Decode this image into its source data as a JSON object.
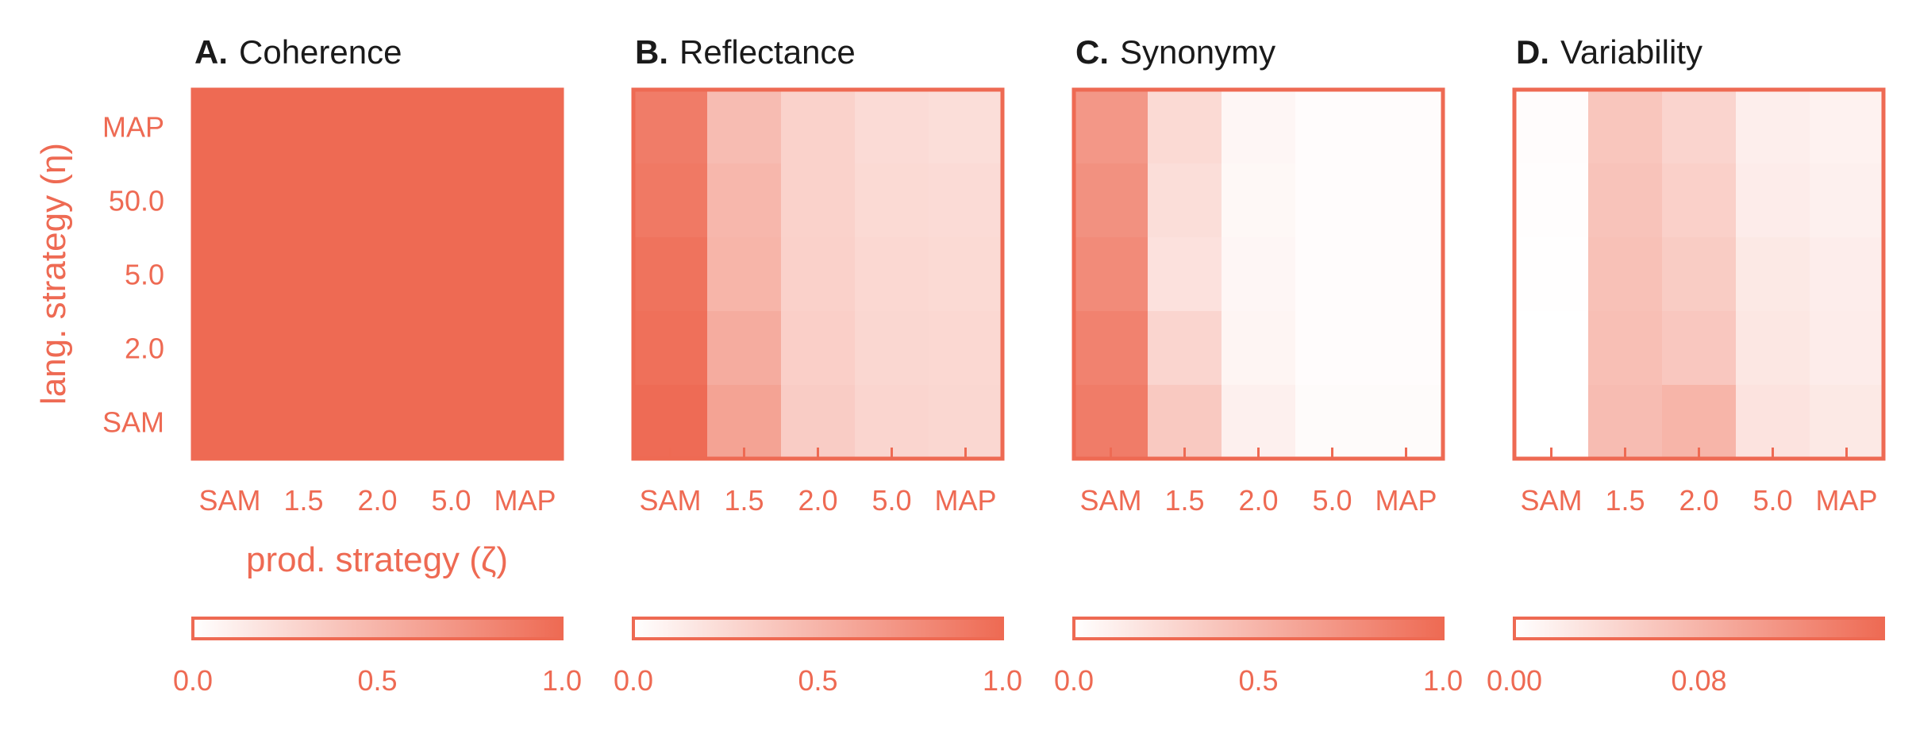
{
  "accent_color": "#EE6A53",
  "text_color": "#1a1a1a",
  "axes": {
    "ylabel": "lang. strategy (η)",
    "xlabel": "prod. strategy (ζ)",
    "row_labels_top_to_bottom": [
      "MAP",
      "50.0",
      "5.0",
      "2.0",
      "SAM"
    ],
    "col_labels": [
      "SAM",
      "1.5",
      "2.0",
      "5.0",
      "MAP"
    ]
  },
  "chart_data": [
    {
      "type": "heatmap",
      "letter": "A.",
      "title": "Coherence",
      "rows": [
        "MAP",
        "50.0",
        "5.0",
        "2.0",
        "SAM"
      ],
      "cols": [
        "SAM",
        "1.5",
        "2.0",
        "5.0",
        "MAP"
      ],
      "values": [
        [
          1.0,
          1.0,
          1.0,
          1.0,
          1.0
        ],
        [
          1.0,
          1.0,
          1.0,
          1.0,
          1.0
        ],
        [
          1.0,
          1.0,
          1.0,
          1.0,
          1.0
        ],
        [
          1.0,
          1.0,
          1.0,
          1.0,
          1.0
        ],
        [
          1.0,
          1.0,
          1.0,
          1.0,
          1.0
        ]
      ],
      "vmin": 0.0,
      "vmax": 1.0,
      "colorbar_ticks": [
        {
          "value": 0.0,
          "label": "0.0"
        },
        {
          "value": 0.5,
          "label": "0.5"
        },
        {
          "value": 1.0,
          "label": "1.0"
        }
      ]
    },
    {
      "type": "heatmap",
      "letter": "B.",
      "title": "Reflectance",
      "rows": [
        "MAP",
        "50.0",
        "5.0",
        "2.0",
        "SAM"
      ],
      "cols": [
        "SAM",
        "1.5",
        "2.0",
        "5.0",
        "MAP"
      ],
      "values": [
        [
          0.88,
          0.45,
          0.3,
          0.24,
          0.22
        ],
        [
          0.9,
          0.48,
          0.3,
          0.25,
          0.24
        ],
        [
          0.94,
          0.5,
          0.31,
          0.26,
          0.25
        ],
        [
          0.96,
          0.56,
          0.32,
          0.27,
          0.26
        ],
        [
          0.99,
          0.62,
          0.34,
          0.28,
          0.27
        ]
      ],
      "vmin": 0.0,
      "vmax": 1.0,
      "colorbar_ticks": [
        {
          "value": 0.0,
          "label": "0.0"
        },
        {
          "value": 0.5,
          "label": "0.5"
        },
        {
          "value": 1.0,
          "label": "1.0"
        }
      ]
    },
    {
      "type": "heatmap",
      "letter": "C.",
      "title": "Synonymy",
      "rows": [
        "MAP",
        "50.0",
        "5.0",
        "2.0",
        "SAM"
      ],
      "cols": [
        "SAM",
        "1.5",
        "2.0",
        "5.0",
        "MAP"
      ],
      "values": [
        [
          0.7,
          0.25,
          0.06,
          0.02,
          0.02
        ],
        [
          0.74,
          0.22,
          0.05,
          0.02,
          0.02
        ],
        [
          0.78,
          0.2,
          0.06,
          0.02,
          0.02
        ],
        [
          0.84,
          0.28,
          0.07,
          0.02,
          0.02
        ],
        [
          0.88,
          0.36,
          0.1,
          0.03,
          0.03
        ]
      ],
      "vmin": 0.0,
      "vmax": 1.0,
      "colorbar_ticks": [
        {
          "value": 0.0,
          "label": "0.0"
        },
        {
          "value": 0.5,
          "label": "0.5"
        },
        {
          "value": 1.0,
          "label": "1.0"
        }
      ]
    },
    {
      "type": "heatmap",
      "letter": "D.",
      "title": "Variability",
      "rows": [
        "MAP",
        "50.0",
        "5.0",
        "2.0",
        "SAM"
      ],
      "cols": [
        "SAM",
        "1.5",
        "2.0",
        "5.0",
        "MAP"
      ],
      "values": [
        [
          0.003,
          0.061,
          0.046,
          0.018,
          0.014
        ],
        [
          0.002,
          0.064,
          0.05,
          0.02,
          0.016
        ],
        [
          0.001,
          0.067,
          0.055,
          0.024,
          0.019
        ],
        [
          0.0,
          0.069,
          0.06,
          0.026,
          0.02
        ],
        [
          0.0,
          0.072,
          0.08,
          0.03,
          0.024
        ]
      ],
      "vmin": 0.0,
      "vmax": 0.16,
      "colorbar_ticks": [
        {
          "value": 0.0,
          "label": "0.00"
        },
        {
          "value": 0.08,
          "label": "0.08"
        }
      ]
    }
  ]
}
